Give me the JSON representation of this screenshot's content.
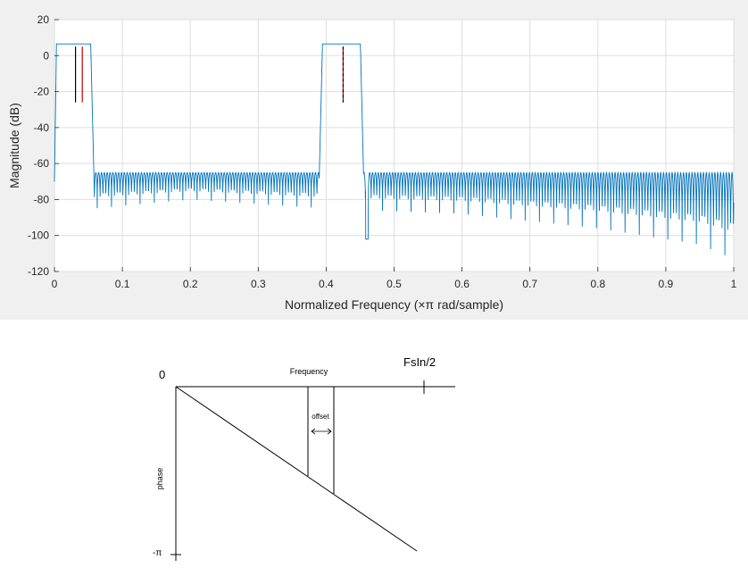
{
  "chart_data": [
    {
      "type": "line",
      "title": "",
      "xlabel": "Normalized Frequency  (×π rad/sample)",
      "ylabel": "Magnitude (dB)",
      "xlim": [
        0,
        1
      ],
      "ylim": [
        -120,
        20
      ],
      "grid": true,
      "x_ticks": [
        "0",
        "0.1",
        "0.2",
        "0.3",
        "0.4",
        "0.5",
        "0.6",
        "0.7",
        "0.8",
        "0.9",
        "1"
      ],
      "y_ticks": [
        "20",
        "0",
        "-20",
        "-40",
        "-60",
        "-80",
        "-100",
        "-120"
      ],
      "series": [
        {
          "color": "#0072bd",
          "passbands": [
            {
              "x_start": 0.0,
              "x_end": 0.058,
              "top_db": 6.5
            },
            {
              "x_start": 0.39,
              "x_end": 0.455,
              "top_db": 6.5
            }
          ],
          "stopband_ripple_peak_db": -65,
          "stopband_ripple_trough_db": [
            [
              0.0,
              -87
            ],
            [
              0.2,
              -80
            ],
            [
              0.4,
              -85
            ],
            [
              0.6,
              -88
            ],
            [
              0.8,
              -96
            ],
            [
              0.95,
              -105
            ],
            [
              1.0,
              -113
            ]
          ],
          "notch": {
            "x": 0.46,
            "y": -102
          }
        }
      ],
      "markers": [
        {
          "x": 0.031,
          "y_top": 5,
          "y_bottom": -26,
          "color": "#000000"
        },
        {
          "x": 0.041,
          "y_top": 5,
          "y_bottom": -26,
          "color": "#c00000"
        },
        {
          "x": 0.425,
          "y_top": 5,
          "y_bottom": -26,
          "color": "#c00000"
        },
        {
          "x": 0.425,
          "y_top": 5,
          "y_bottom": -26,
          "color": "#000000"
        }
      ]
    },
    {
      "type": "sketch",
      "labels": {
        "origin": "0",
        "frequency": "Frequency",
        "nyquist": "FsIn/2",
        "offset": "offset",
        "phase": "phase",
        "minus_pi": "-π"
      }
    }
  ]
}
